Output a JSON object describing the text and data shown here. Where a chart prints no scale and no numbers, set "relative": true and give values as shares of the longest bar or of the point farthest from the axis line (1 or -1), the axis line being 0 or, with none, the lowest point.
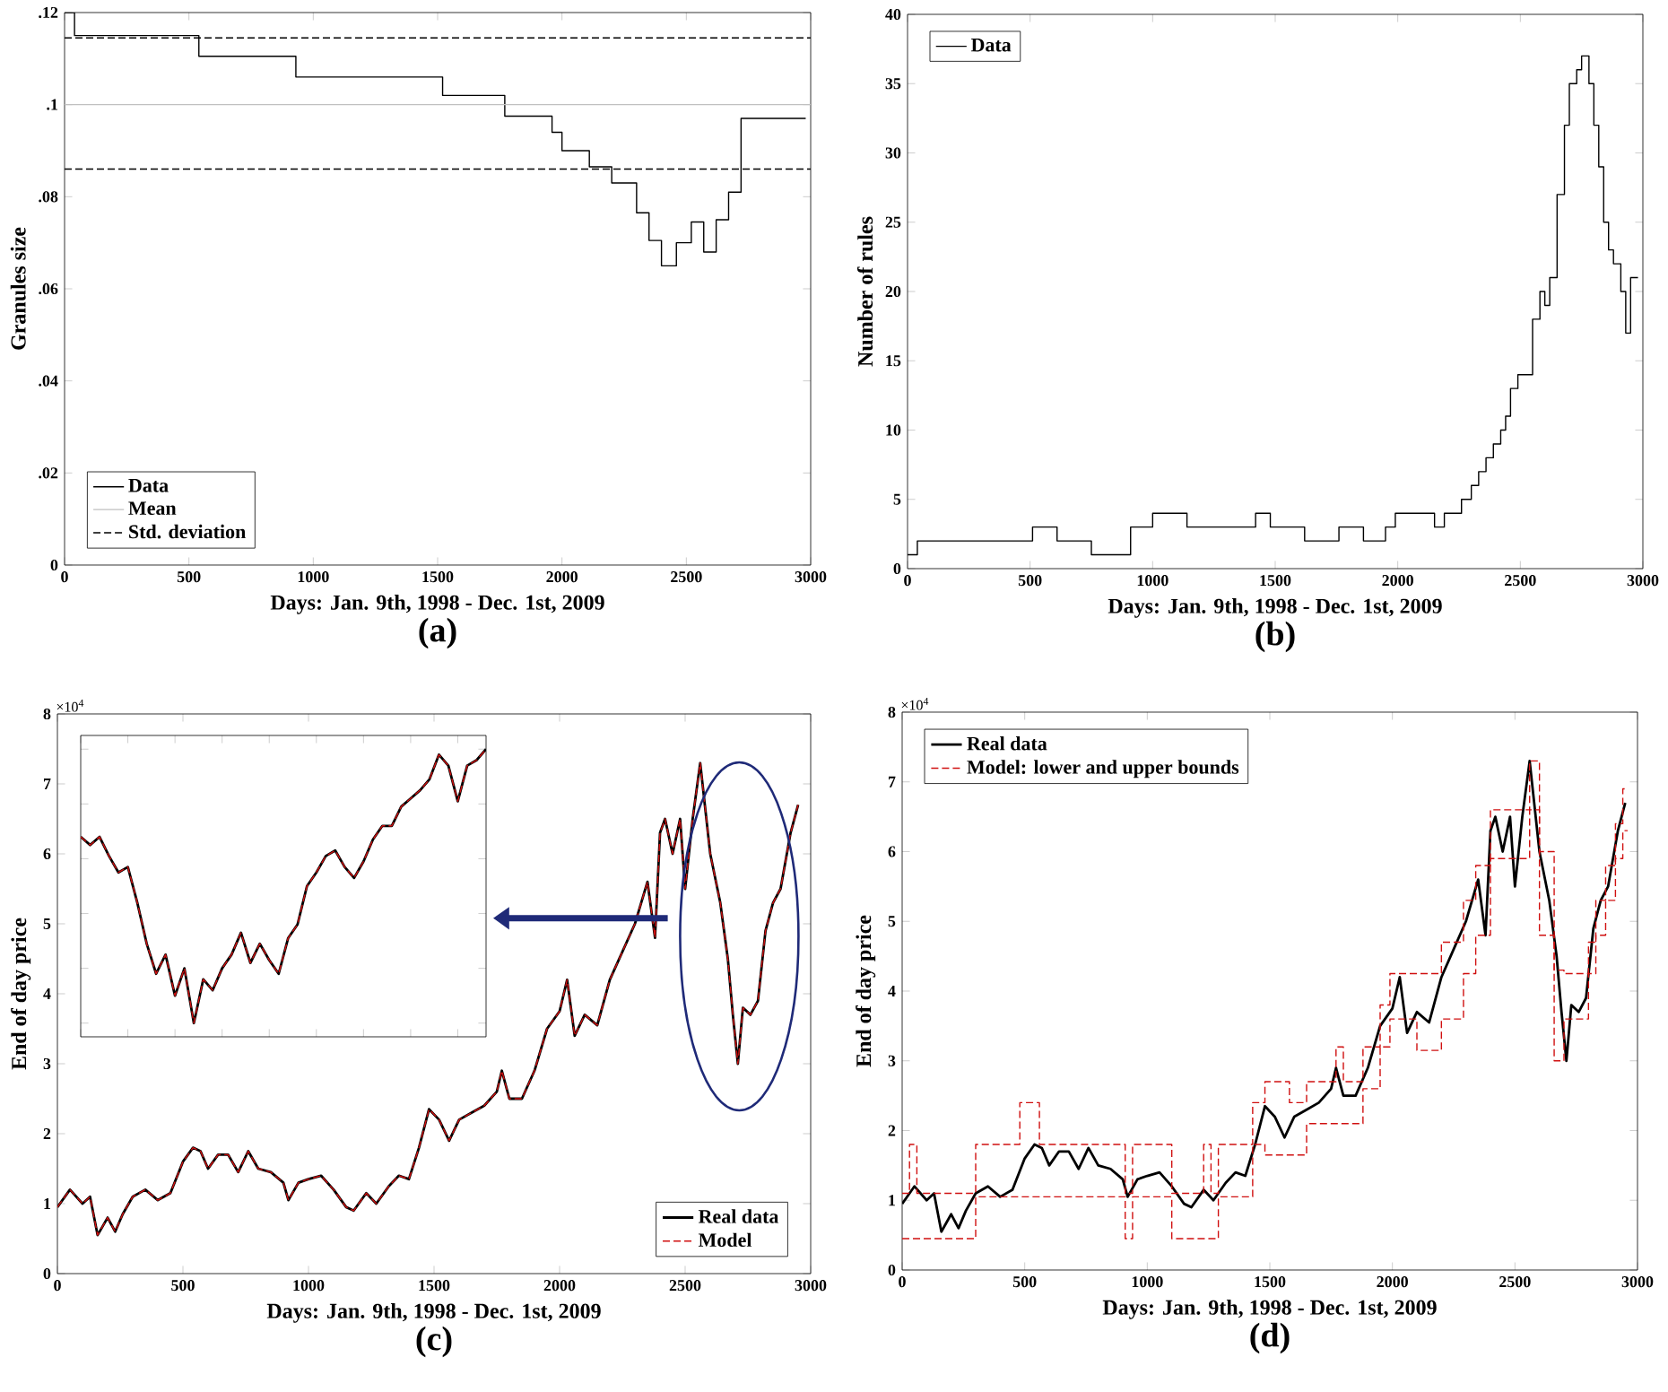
{
  "chart_data": [
    {
      "type": "step",
      "xlabel": "Days: Jan. 9th, 1998 - Dec. 1st, 2009",
      "ylabel": "Granules size",
      "xlim": [
        0,
        3000
      ],
      "ylim": [
        0,
        0.12
      ],
      "xticks": [
        0,
        500,
        1000,
        1500,
        2000,
        2500,
        3000
      ],
      "yticks": [
        {
          "value": 0,
          "label": "0"
        },
        {
          "value": 0.02,
          "label": ".02"
        },
        {
          "value": 0.04,
          "label": ".04"
        },
        {
          "value": 0.06,
          "label": ".06"
        },
        {
          "value": 0.08,
          "label": ".08"
        },
        {
          "value": 0.1,
          "label": ".1"
        },
        {
          "value": 0.12,
          "label": ".12"
        }
      ],
      "x": [
        0,
        40,
        540,
        930,
        1520,
        1770,
        1960,
        2000,
        2110,
        2200,
        2300,
        2350,
        2400,
        2460,
        2520,
        2570,
        2620,
        2670,
        2720,
        2980
      ],
      "series": [
        {
          "name": "Data",
          "color": "#000000",
          "values": [
            0.12,
            0.115,
            0.1105,
            0.106,
            0.102,
            0.0975,
            0.094,
            0.09,
            0.0865,
            0.083,
            0.0765,
            0.0705,
            0.065,
            0.07,
            0.0745,
            0.068,
            0.075,
            0.081,
            0.097,
            0.097
          ]
        }
      ],
      "ref_lines": [
        {
          "axis": "y",
          "value": 0.1,
          "label": "Mean",
          "color": "#c0c0c0",
          "line_style": "solid"
        },
        {
          "axis": "y",
          "value": 0.1145,
          "label": "Std. deviation",
          "color": "#000000",
          "line_style": "dashed"
        },
        {
          "axis": "y",
          "value": 0.086,
          "color": "#000000",
          "line_style": "dashed"
        }
      ],
      "legend": "bottom left",
      "annotations": [
        "(a)"
      ]
    },
    {
      "type": "step",
      "xlabel": "Days: Jan. 9th, 1998 - Dec. 1st, 2009",
      "ylabel": "Number of rules",
      "xlim": [
        0,
        3000
      ],
      "ylim": [
        0,
        40
      ],
      "xticks": [
        0,
        500,
        1000,
        1500,
        2000,
        2500,
        3000
      ],
      "yticks": [
        0,
        5,
        10,
        15,
        20,
        25,
        30,
        35,
        40
      ],
      "x": [
        0,
        40,
        510,
        610,
        750,
        910,
        1000,
        1140,
        1420,
        1480,
        1620,
        1760,
        1860,
        1950,
        1990,
        2150,
        2190,
        2260,
        2300,
        2330,
        2360,
        2390,
        2420,
        2440,
        2460,
        2490,
        2550,
        2580,
        2600,
        2620,
        2650,
        2680,
        2700,
        2730,
        2750,
        2780,
        2800,
        2820,
        2840,
        2860,
        2880,
        2910,
        2930,
        2950,
        2980
      ],
      "series": [
        {
          "name": "Data",
          "color": "#000000",
          "values": [
            1,
            2,
            3,
            2,
            1,
            3,
            4,
            3,
            4,
            3,
            2,
            3,
            2,
            3,
            4,
            3,
            4,
            5,
            6,
            7,
            8,
            9,
            10,
            11,
            13,
            14,
            18,
            20,
            19,
            21,
            27,
            32,
            35,
            36,
            37,
            35,
            32,
            29,
            25,
            23,
            22,
            20,
            17,
            21,
            21
          ]
        }
      ],
      "legend": "top left",
      "annotations": [
        "(b)"
      ]
    },
    {
      "type": "line",
      "xlabel": "Days: Jan. 9th, 1998 - Dec. 1st, 2009",
      "ylabel": "End of day price",
      "xlim": [
        0,
        3000
      ],
      "ylim": [
        0,
        8
      ],
      "xticks": [
        0,
        500,
        1000,
        1500,
        2000,
        2500,
        3000
      ],
      "yticks": [
        0,
        1,
        2,
        3,
        4,
        5,
        6,
        7,
        8
      ],
      "x": [
        0,
        50,
        100,
        130,
        160,
        200,
        230,
        260,
        300,
        350,
        400,
        450,
        500,
        540,
        570,
        600,
        640,
        680,
        720,
        760,
        800,
        850,
        900,
        920,
        960,
        1000,
        1050,
        1100,
        1150,
        1180,
        1230,
        1270,
        1320,
        1360,
        1400,
        1440,
        1480,
        1520,
        1560,
        1600,
        1650,
        1700,
        1750,
        1770,
        1800,
        1850,
        1900,
        1950,
        2000,
        2030,
        2060,
        2100,
        2150,
        2200,
        2250,
        2300,
        2350,
        2380,
        2400,
        2420,
        2450,
        2480,
        2500,
        2530,
        2560,
        2600,
        2640,
        2670,
        2690,
        2710,
        2730,
        2760,
        2790,
        2820,
        2850,
        2880,
        2920,
        2950
      ],
      "series": [
        {
          "name": "Real data",
          "color": "#000000",
          "line_style": "solid",
          "values": [
            0.95,
            1.2,
            1.0,
            1.1,
            0.55,
            0.8,
            0.6,
            0.85,
            1.1,
            1.2,
            1.05,
            1.15,
            1.6,
            1.8,
            1.75,
            1.5,
            1.7,
            1.7,
            1.45,
            1.75,
            1.5,
            1.45,
            1.3,
            1.05,
            1.3,
            1.35,
            1.4,
            1.2,
            0.95,
            0.9,
            1.15,
            1.0,
            1.25,
            1.4,
            1.35,
            1.8,
            2.35,
            2.2,
            1.9,
            2.2,
            2.3,
            2.4,
            2.6,
            2.9,
            2.5,
            2.5,
            2.9,
            3.5,
            3.75,
            4.2,
            3.4,
            3.7,
            3.55,
            4.2,
            4.6,
            5.0,
            5.6,
            4.8,
            6.3,
            6.5,
            6.0,
            6.5,
            5.5,
            6.5,
            7.3,
            6.0,
            5.3,
            4.5,
            3.7,
            3.0,
            3.8,
            3.7,
            3.9,
            4.9,
            5.3,
            5.5,
            6.3,
            6.7
          ]
        },
        {
          "name": "Model",
          "color": "#d01010",
          "line_style": "dashed",
          "values": [
            0.95,
            1.2,
            1.0,
            1.1,
            0.55,
            0.8,
            0.6,
            0.85,
            1.1,
            1.2,
            1.05,
            1.15,
            1.6,
            1.8,
            1.75,
            1.5,
            1.7,
            1.7,
            1.45,
            1.75,
            1.5,
            1.45,
            1.3,
            1.05,
            1.3,
            1.35,
            1.4,
            1.2,
            0.95,
            0.9,
            1.15,
            1.0,
            1.25,
            1.4,
            1.35,
            1.8,
            2.35,
            2.2,
            1.9,
            2.2,
            2.3,
            2.4,
            2.6,
            2.9,
            2.5,
            2.5,
            2.9,
            3.5,
            3.75,
            4.2,
            3.4,
            3.7,
            3.55,
            4.2,
            4.6,
            5.0,
            5.6,
            4.8,
            6.3,
            6.5,
            6.0,
            6.5,
            5.5,
            6.5,
            7.3,
            6.0,
            5.3,
            4.5,
            3.7,
            3.0,
            3.8,
            3.7,
            3.9,
            4.9,
            5.3,
            5.5,
            6.3,
            6.7
          ]
        }
      ],
      "legend": "bottom right",
      "annotations": [
        "×10$^{4}$",
        "(c)"
      ]
    },
    {
      "type": "line",
      "relative": true,
      "categories": [
        null,
        null,
        null,
        null,
        null,
        null,
        null,
        null,
        null,
        null,
        null,
        null,
        null,
        null,
        null,
        null,
        null,
        null,
        null,
        null,
        null,
        null,
        null,
        null,
        null,
        null,
        null,
        null,
        null,
        null,
        null,
        null,
        null,
        null,
        null,
        null,
        null,
        null,
        null,
        null,
        null,
        null,
        null,
        null
      ],
      "series": [
        {
          "color": "#000000",
          "line_style": "solid",
          "values": [
            0.68,
            0.65,
            0.68,
            0.61,
            0.55,
            0.57,
            0.44,
            0.29,
            0.18,
            0.25,
            0.1,
            0.2,
            0,
            0.16,
            0.12,
            0.2,
            0.25,
            0.33,
            0.22,
            0.29,
            0.23,
            0.18,
            0.31,
            0.36,
            0.5,
            0.55,
            0.61,
            0.63,
            0.57,
            0.53,
            0.59,
            0.67,
            0.72,
            0.72,
            0.79,
            0.82,
            0.85,
            0.89,
            0.98,
            0.94,
            0.81,
            0.94,
            0.96,
            1
          ]
        },
        {
          "color": "#d01010",
          "line_style": "dashed",
          "values": [
            0.68,
            0.65,
            0.68,
            0.61,
            0.55,
            0.57,
            0.44,
            0.29,
            0.18,
            0.25,
            0.1,
            0.2,
            0,
            0.16,
            0.12,
            0.2,
            0.25,
            0.33,
            0.22,
            0.29,
            0.23,
            0.18,
            0.31,
            0.36,
            0.5,
            0.55,
            0.61,
            0.63,
            0.57,
            0.53,
            0.59,
            0.67,
            0.72,
            0.72,
            0.79,
            0.82,
            0.85,
            0.89,
            0.98,
            0.94,
            0.81,
            0.94,
            0.96,
            1
          ]
        }
      ]
    },
    {
      "type": "line",
      "xlabel": "Days: Jan. 9th, 1998 - Dec. 1st, 2009",
      "ylabel": "End of day price",
      "xlim": [
        0,
        3000
      ],
      "ylim": [
        0,
        8
      ],
      "xticks": [
        0,
        500,
        1000,
        1500,
        2000,
        2500,
        3000
      ],
      "yticks": [
        0,
        1,
        2,
        3,
        4,
        5,
        6,
        7,
        8
      ],
      "x": [
        0,
        50,
        100,
        130,
        160,
        200,
        230,
        260,
        300,
        350,
        400,
        450,
        500,
        540,
        570,
        600,
        640,
        680,
        720,
        760,
        800,
        850,
        900,
        920,
        960,
        1000,
        1050,
        1100,
        1150,
        1180,
        1230,
        1270,
        1320,
        1360,
        1400,
        1440,
        1480,
        1520,
        1560,
        1600,
        1650,
        1700,
        1750,
        1770,
        1800,
        1850,
        1900,
        1950,
        2000,
        2030,
        2060,
        2100,
        2150,
        2200,
        2250,
        2300,
        2350,
        2380,
        2400,
        2420,
        2450,
        2480,
        2500,
        2530,
        2560,
        2600,
        2640,
        2670,
        2690,
        2710,
        2730,
        2760,
        2790,
        2820,
        2850,
        2880,
        2920,
        2950
      ],
      "series": [
        {
          "name": "Real data",
          "color": "#000000",
          "line_style": "solid",
          "values": [
            0.95,
            1.2,
            1.0,
            1.1,
            0.55,
            0.8,
            0.6,
            0.85,
            1.1,
            1.2,
            1.05,
            1.15,
            1.6,
            1.8,
            1.75,
            1.5,
            1.7,
            1.7,
            1.45,
            1.75,
            1.5,
            1.45,
            1.3,
            1.05,
            1.3,
            1.35,
            1.4,
            1.2,
            0.95,
            0.9,
            1.15,
            1.0,
            1.25,
            1.4,
            1.35,
            1.8,
            2.35,
            2.2,
            1.9,
            2.2,
            2.3,
            2.4,
            2.6,
            2.9,
            2.5,
            2.5,
            2.9,
            3.5,
            3.75,
            4.2,
            3.4,
            3.7,
            3.55,
            4.2,
            4.6,
            5.0,
            5.6,
            4.8,
            6.3,
            6.5,
            6.0,
            6.5,
            5.5,
            6.5,
            7.3,
            6.0,
            5.3,
            4.5,
            3.7,
            3.0,
            3.8,
            3.7,
            3.9,
            4.9,
            5.3,
            5.5,
            6.3,
            6.7
          ]
        },
        {
          "name": "Model: lower and upper bounds",
          "type": "step",
          "color": "#d01010",
          "line_style": "dashed",
          "x": [
            0,
            30,
            60,
            300,
            480,
            560,
            910,
            940,
            1100,
            1230,
            1260,
            1290,
            1430,
            1480,
            1580,
            1650,
            1770,
            1800,
            1880,
            1950,
            1990,
            2100,
            2200,
            2290,
            2340,
            2400,
            2560,
            2600,
            2660,
            2700,
            2800,
            2830,
            2870,
            2910,
            2940,
            2960
          ],
          "values": [
            1.1,
            1.8,
            1.1,
            1.8,
            2.4,
            1.8,
            1.1,
            1.8,
            1.1,
            1.8,
            1.1,
            1.8,
            2.4,
            2.7,
            2.4,
            2.7,
            3.2,
            2.7,
            3.2,
            3.8,
            4.25,
            4.25,
            4.7,
            5.3,
            5.8,
            6.6,
            7.3,
            6.0,
            4.3,
            4.25,
            4.7,
            5.3,
            5.8,
            6.4,
            6.9,
            6.9
          ]
        },
        {
          "type": "step",
          "color": "#d01010",
          "line_style": "dashed",
          "x": [
            0,
            30,
            60,
            300,
            480,
            560,
            910,
            940,
            1100,
            1230,
            1260,
            1290,
            1430,
            1480,
            1580,
            1650,
            1770,
            1800,
            1880,
            1950,
            1990,
            2100,
            2200,
            2290,
            2340,
            2400,
            2560,
            2600,
            2660,
            2700,
            2800,
            2830,
            2870,
            2910,
            2940,
            2960
          ],
          "values": [
            0.45,
            0.45,
            0.45,
            1.05,
            1.05,
            1.05,
            0.45,
            1.05,
            0.45,
            0.45,
            0.45,
            1.05,
            1.8,
            1.65,
            1.65,
            2.1,
            2.1,
            2.1,
            2.6,
            3.2,
            3.6,
            3.15,
            3.6,
            4.25,
            4.8,
            5.9,
            6.6,
            4.8,
            3.0,
            3.6,
            4.25,
            4.8,
            5.3,
            5.9,
            6.3,
            6.3
          ]
        }
      ],
      "legend": "top left",
      "annotations": [
        "×10$^{4}$",
        "(d)"
      ]
    }
  ]
}
